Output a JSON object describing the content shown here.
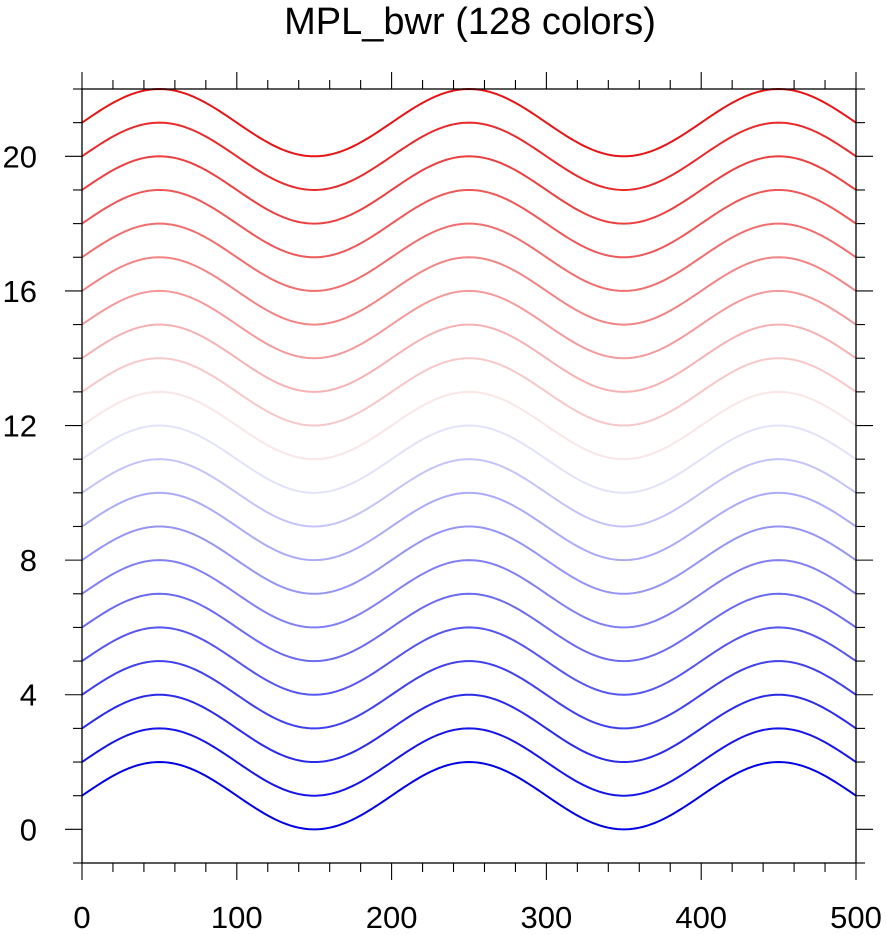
{
  "chart_data": {
    "type": "line",
    "title": "MPL_bwr (128 colors)",
    "xlabel": "",
    "ylabel": "",
    "xlim": [
      0,
      500
    ],
    "ylim": [
      -1,
      22
    ],
    "x_ticks": [
      0,
      100,
      200,
      300,
      400,
      500
    ],
    "y_ticks": [
      0,
      4,
      8,
      12,
      16,
      20
    ],
    "x_minor_step": 20,
    "y_minor_step": 1,
    "grid": false,
    "legend": "none",
    "curve_function": "y = offset + sin(2*pi*(x - 0)/200)",
    "x_sample_step": 2,
    "series": [
      {
        "offset": 1,
        "color": "#0000e6"
      },
      {
        "offset": 2,
        "color": "#1515e9"
      },
      {
        "offset": 3,
        "color": "#2a2aeb"
      },
      {
        "offset": 4,
        "color": "#4040ee"
      },
      {
        "offset": 5,
        "color": "#5555f0"
      },
      {
        "offset": 6,
        "color": "#6a6af2"
      },
      {
        "offset": 7,
        "color": "#8080f4"
      },
      {
        "offset": 8,
        "color": "#9595f6"
      },
      {
        "offset": 9,
        "color": "#ababf8"
      },
      {
        "offset": 10,
        "color": "#c4c4fa"
      },
      {
        "offset": 11,
        "color": "#e2e2fc"
      },
      {
        "offset": 12,
        "color": "#fbe6e6"
      },
      {
        "offset": 13,
        "color": "#f8c8c8"
      },
      {
        "offset": 14,
        "color": "#f6b2b2"
      },
      {
        "offset": 15,
        "color": "#f49a9a"
      },
      {
        "offset": 16,
        "color": "#f28484"
      },
      {
        "offset": 17,
        "color": "#f06e6e"
      },
      {
        "offset": 18,
        "color": "#ee5858"
      },
      {
        "offset": 19,
        "color": "#ec4040"
      },
      {
        "offset": 20,
        "color": "#e92a2a"
      },
      {
        "offset": 21,
        "color": "#e61414"
      }
    ]
  }
}
